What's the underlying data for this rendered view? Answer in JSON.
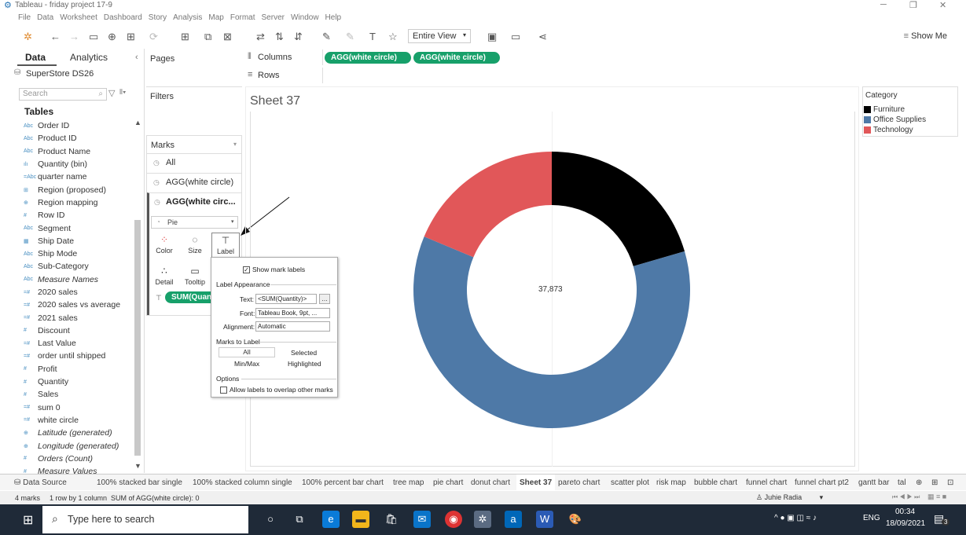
{
  "window": {
    "title": "Tableau - friday project 17-9"
  },
  "menu": [
    "File",
    "Data",
    "Worksheet",
    "Dashboard",
    "Story",
    "Analysis",
    "Map",
    "Format",
    "Server",
    "Window",
    "Help"
  ],
  "toolbar": {
    "fit_label": "Entire View",
    "show_me": "Show Me"
  },
  "data_pane": {
    "tab_data": "Data",
    "tab_analytics": "Analytics",
    "datasource": "SuperStore DS26",
    "search_placeholder": "Search",
    "tables_heading": "Tables",
    "fields": [
      {
        "icon": "Abc",
        "name": "Order ID"
      },
      {
        "icon": "Abc",
        "name": "Product ID"
      },
      {
        "icon": "Abc",
        "name": "Product Name"
      },
      {
        "icon": "ılı",
        "name": "Quantity (bin)"
      },
      {
        "icon": "=Abc",
        "name": "quarter name"
      },
      {
        "icon": "⊞",
        "name": "Region (proposed)"
      },
      {
        "icon": "⊕",
        "name": "Region mapping"
      },
      {
        "icon": "#",
        "name": "Row ID"
      },
      {
        "icon": "Abc",
        "name": "Segment"
      },
      {
        "icon": "▦",
        "name": "Ship Date"
      },
      {
        "icon": "Abc",
        "name": "Ship Mode"
      },
      {
        "icon": "Abc",
        "name": "Sub-Category"
      },
      {
        "icon": "Abc",
        "name": "Measure Names",
        "italic": true
      },
      {
        "icon": "=#",
        "name": "2020 sales"
      },
      {
        "icon": "=#",
        "name": "2020 sales vs average"
      },
      {
        "icon": "=#",
        "name": "2021 sales"
      },
      {
        "icon": "#",
        "name": "Discount"
      },
      {
        "icon": "=#",
        "name": "Last Value"
      },
      {
        "icon": "=#",
        "name": "order until shipped"
      },
      {
        "icon": "#",
        "name": "Profit"
      },
      {
        "icon": "#",
        "name": "Quantity"
      },
      {
        "icon": "#",
        "name": "Sales"
      },
      {
        "icon": "=#",
        "name": "sum 0"
      },
      {
        "icon": "=#",
        "name": "white circle"
      },
      {
        "icon": "⊕",
        "name": "Latitude (generated)",
        "italic": true
      },
      {
        "icon": "⊕",
        "name": "Longitude (generated)",
        "italic": true
      },
      {
        "icon": "#",
        "name": "Orders (Count)",
        "italic": true
      },
      {
        "icon": "#",
        "name": "Measure Values",
        "italic": true
      }
    ]
  },
  "cards": {
    "pages": "Pages",
    "filters": "Filters",
    "marks": "Marks",
    "marks_all": "All",
    "marks_agg1": "AGG(white circle)",
    "marks_agg2": "AGG(white circ...",
    "mark_type": "Pie",
    "btn_color": "Color",
    "btn_size": "Size",
    "btn_label": "Label",
    "btn_detail": "Detail",
    "btn_tooltip": "Tooltip",
    "pill_label": "SUM(Quant"
  },
  "shelves": {
    "columns_label": "Columns",
    "rows_label": "Rows",
    "column_pills": [
      "AGG(white circle)",
      "AGG(white circle)"
    ]
  },
  "label_popup": {
    "show_mark_labels": "Show mark labels",
    "label_appearance": "Label Appearance",
    "text_label": "Text:",
    "text_value": "<SUM(Quantity)>",
    "font_label": "Font:",
    "font_value": "Tableau Book, 9pt, ...",
    "alignment_label": "Alignment:",
    "alignment_value": "Automatic",
    "marks_to_label": "Marks to Label",
    "all": "All",
    "selected": "Selected",
    "minmax": "Min/Max",
    "highlighted": "Highlighted",
    "options": "Options",
    "allow_overlap": "Allow labels to overlap other marks"
  },
  "sheet": {
    "title": "Sheet 37",
    "center_label": "37,873"
  },
  "legend": {
    "title": "Category",
    "items": [
      {
        "name": "Furniture",
        "color": "#000000"
      },
      {
        "name": "Office Supplies",
        "color": "#4e79a7"
      },
      {
        "name": "Technology",
        "color": "#e15759"
      }
    ]
  },
  "chart_data": {
    "type": "pie",
    "categories": [
      "Furniture",
      "Office Supplies",
      "Technology"
    ],
    "values": [
      0.205,
      0.608,
      0.187
    ],
    "colors": [
      "#000000",
      "#4e79a7",
      "#e15759"
    ],
    "center_label": "37,873"
  },
  "tabs": {
    "data_source": "Data Source",
    "sheets": [
      "100% stacked bar single",
      "100% stacked column single",
      "100% percent bar chart",
      "tree map",
      "pie chart",
      "donut chart",
      "Sheet 37",
      "pareto chart",
      "scatter plot",
      "risk map",
      "bubble chart",
      "funnel chart",
      "funnel chart pt2",
      "gantt bar",
      "tal"
    ],
    "active": "Sheet 37"
  },
  "status": {
    "marks": "4 marks",
    "rows": "1 row by 1 column",
    "sum": "SUM of AGG(white circle): 0",
    "user": "Juhie Radia"
  },
  "taskbar": {
    "search_placeholder": "Type here to search",
    "lang": "ENG",
    "time": "00:34",
    "date": "18/09/2021",
    "notif_count": "3"
  }
}
